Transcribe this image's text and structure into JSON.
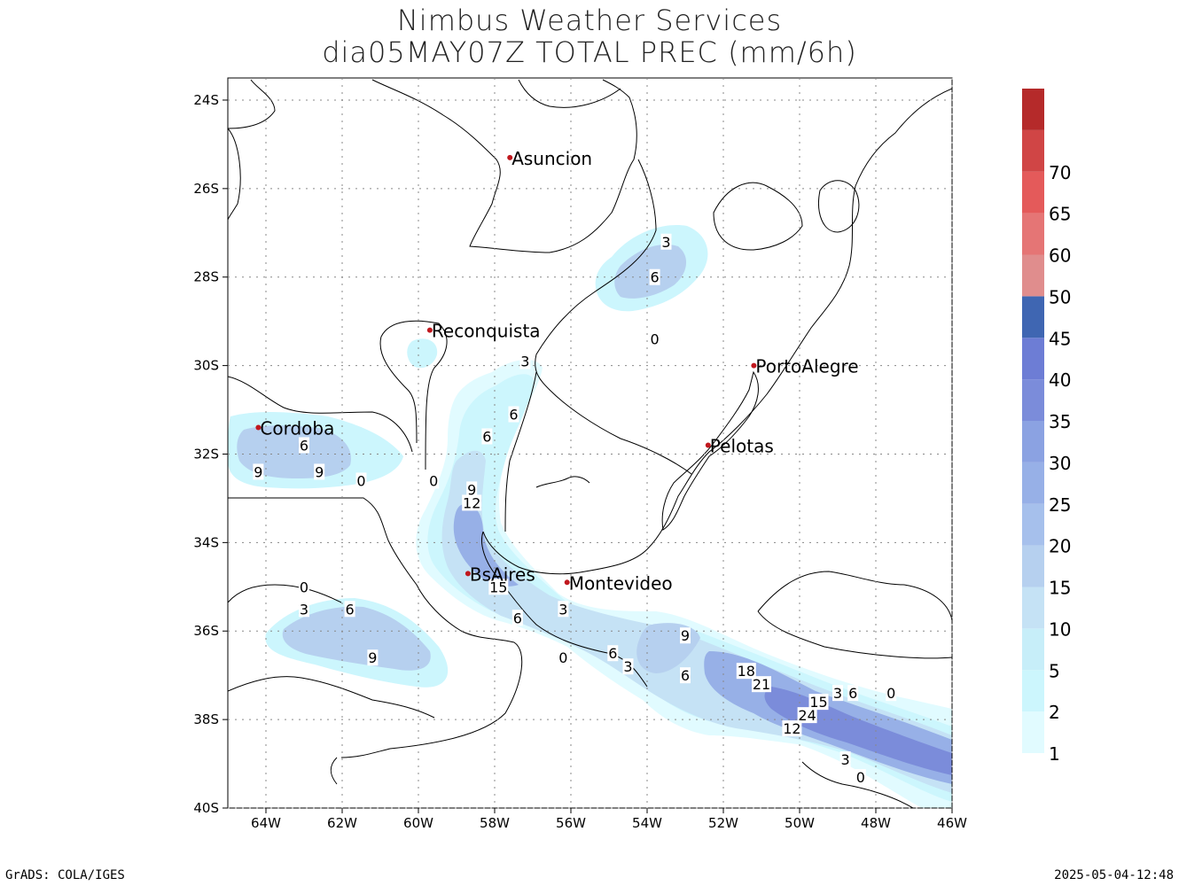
{
  "header": {
    "line1": "Nimbus Weather Services",
    "line2": "dia05MAY07Z TOTAL PREC (mm/6h)"
  },
  "footer": {
    "left": "GrADS: COLA/IGES",
    "right": "2025-05-04-12:48"
  },
  "axes": {
    "lat_labels": [
      "24S",
      "26S",
      "28S",
      "30S",
      "32S",
      "34S",
      "36S",
      "38S",
      "40S"
    ],
    "lon_labels": [
      "64W",
      "62W",
      "60W",
      "58W",
      "56W",
      "54W",
      "52W",
      "50W",
      "48W",
      "46W"
    ],
    "lon_range": [
      -65,
      -46
    ],
    "lat_range": [
      -40,
      -23.5
    ],
    "grid": "dotted"
  },
  "cities": [
    {
      "name": "Asuncion",
      "lon": -57.6,
      "lat": -25.3
    },
    {
      "name": "Reconquista",
      "lon": -59.7,
      "lat": -29.2
    },
    {
      "name": "PortoAlegre",
      "lon": -51.2,
      "lat": -30.0
    },
    {
      "name": "Cordoba",
      "lon": -64.2,
      "lat": -31.4
    },
    {
      "name": "Pelotas",
      "lon": -52.4,
      "lat": -31.8
    },
    {
      "name": "BsAires",
      "lon": -58.7,
      "lat": -34.7
    },
    {
      "name": "Montevideo",
      "lon": -56.1,
      "lat": -34.9
    }
  ],
  "colorbar": {
    "levels": [
      "1",
      "2",
      "5",
      "10",
      "15",
      "20",
      "25",
      "30",
      "35",
      "40",
      "45",
      "50",
      "60",
      "65",
      "70"
    ],
    "colors": [
      "#e1fbff",
      "#ccf6fd",
      "#c7eef9",
      "#c5e2f5",
      "#b6d0ef",
      "#a6c0ec",
      "#97b0e7",
      "#8ba2e2",
      "#7b8cda",
      "#6d7dd5",
      "#3f66b2",
      "#e08d8d",
      "#e57575",
      "#e45a5a",
      "#d04545",
      "#b52a2a"
    ]
  },
  "contour_labels": [
    {
      "text": "3",
      "lon": -53.5,
      "lat": -27.2
    },
    {
      "text": "6",
      "lon": -53.8,
      "lat": -28.0
    },
    {
      "text": "0",
      "lon": -53.8,
      "lat": -29.4
    },
    {
      "text": "3",
      "lon": -57.2,
      "lat": -29.9
    },
    {
      "text": "6",
      "lon": -57.5,
      "lat": -31.1
    },
    {
      "text": "6",
      "lon": -58.2,
      "lat": -31.6
    },
    {
      "text": "9",
      "lon": -58.6,
      "lat": -32.8
    },
    {
      "text": "12",
      "lon": -58.6,
      "lat": -33.1
    },
    {
      "text": "15",
      "lon": -57.9,
      "lat": -35.0
    },
    {
      "text": "6",
      "lon": -57.4,
      "lat": -35.7
    },
    {
      "text": "3",
      "lon": -56.2,
      "lat": -35.5
    },
    {
      "text": "0",
      "lon": -56.2,
      "lat": -36.6
    },
    {
      "text": "6",
      "lon": -54.9,
      "lat": -36.5
    },
    {
      "text": "3",
      "lon": -54.5,
      "lat": -36.8
    },
    {
      "text": "6",
      "lon": -53.0,
      "lat": -37.0
    },
    {
      "text": "9",
      "lon": -53.0,
      "lat": -36.1
    },
    {
      "text": "18",
      "lon": -51.4,
      "lat": -36.9
    },
    {
      "text": "21",
      "lon": -51.0,
      "lat": -37.2
    },
    {
      "text": "15",
      "lon": -49.5,
      "lat": -37.6
    },
    {
      "text": "24",
      "lon": -49.8,
      "lat": -37.9
    },
    {
      "text": "12",
      "lon": -50.2,
      "lat": -38.2
    },
    {
      "text": "3",
      "lon": -49.0,
      "lat": -37.4
    },
    {
      "text": "6",
      "lon": -48.6,
      "lat": -37.4
    },
    {
      "text": "0",
      "lon": -47.6,
      "lat": -37.4
    },
    {
      "text": "3",
      "lon": -48.8,
      "lat": -38.9
    },
    {
      "text": "0",
      "lon": -48.4,
      "lat": -39.3
    },
    {
      "text": "6",
      "lon": -63.0,
      "lat": -31.8
    },
    {
      "text": "9",
      "lon": -64.2,
      "lat": -32.4
    },
    {
      "text": "9",
      "lon": -62.6,
      "lat": -32.4
    },
    {
      "text": "0",
      "lon": -61.5,
      "lat": -32.6
    },
    {
      "text": "0",
      "lon": -59.6,
      "lat": -32.6
    },
    {
      "text": "0",
      "lon": -63.0,
      "lat": -35.0
    },
    {
      "text": "3",
      "lon": -63.0,
      "lat": -35.5
    },
    {
      "text": "6",
      "lon": -61.8,
      "lat": -35.5
    },
    {
      "text": "9",
      "lon": -61.2,
      "lat": -36.6
    }
  ]
}
